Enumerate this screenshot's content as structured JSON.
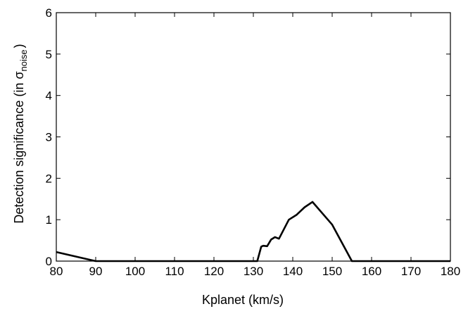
{
  "chart_data": {
    "type": "line",
    "xlabel": "Kplanet (km/s)",
    "ylabel": {
      "main": "Detection significance (in σ",
      "subscript": "noise",
      "close": ")"
    },
    "xlim": [
      80,
      180
    ],
    "ylim": [
      0,
      6
    ],
    "xticks": [
      "80",
      "90",
      "100",
      "110",
      "120",
      "130",
      "140",
      "150",
      "160",
      "170",
      "180"
    ],
    "yticks": [
      "0",
      "1",
      "2",
      "3",
      "4",
      "5",
      "6"
    ],
    "grid": false,
    "line_color": "#000000",
    "series": [
      {
        "x": [
          80,
          90,
          131,
          132,
          132.5,
          133.5,
          134.5,
          135.5,
          136.5,
          139,
          141,
          143,
          145,
          150,
          155,
          180
        ],
        "y": [
          0.22,
          0,
          0,
          0.35,
          0.37,
          0.36,
          0.52,
          0.58,
          0.54,
          1.0,
          1.12,
          1.3,
          1.43,
          0.88,
          0,
          0
        ]
      }
    ]
  }
}
